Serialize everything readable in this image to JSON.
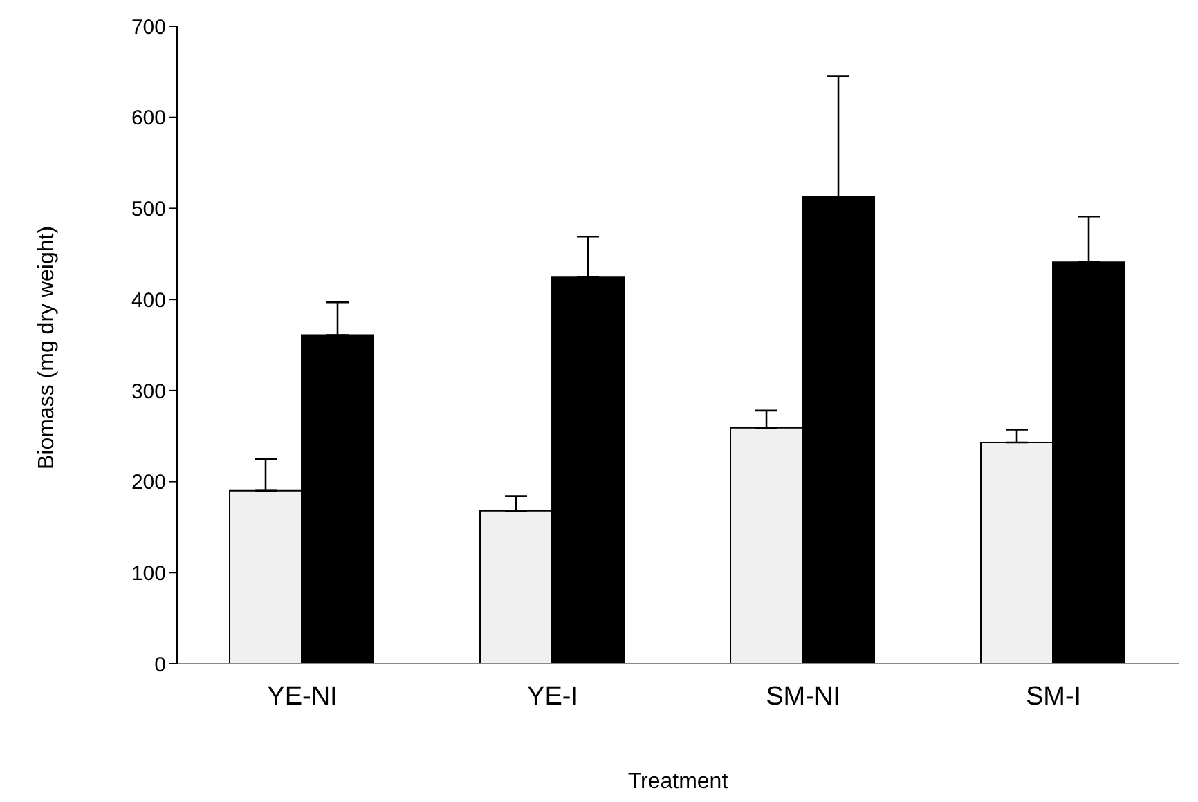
{
  "chart_data": {
    "type": "bar",
    "xlabel": "Treatment",
    "ylabel": "Biomass (mg dry weight)",
    "categories": [
      "YE-NI",
      "YE-I",
      "SM-NI",
      "SM-I"
    ],
    "series": [
      {
        "color": "#f0f0f0",
        "values": [
          190,
          168,
          259,
          243
        ],
        "errors": [
          [
            190,
            225
          ],
          [
            168,
            184
          ],
          [
            259,
            278
          ],
          [
            243,
            257
          ]
        ]
      },
      {
        "color": "#000000",
        "values": [
          361,
          425,
          513,
          441
        ],
        "errors": [
          [
            361,
            397
          ],
          [
            425,
            469
          ],
          [
            513,
            645
          ],
          [
            441,
            491
          ]
        ]
      }
    ],
    "ylim": [
      0,
      700
    ],
    "yticks": [
      0,
      100,
      200,
      300,
      400,
      500,
      600,
      700
    ],
    "grid": false,
    "legend": false
  }
}
